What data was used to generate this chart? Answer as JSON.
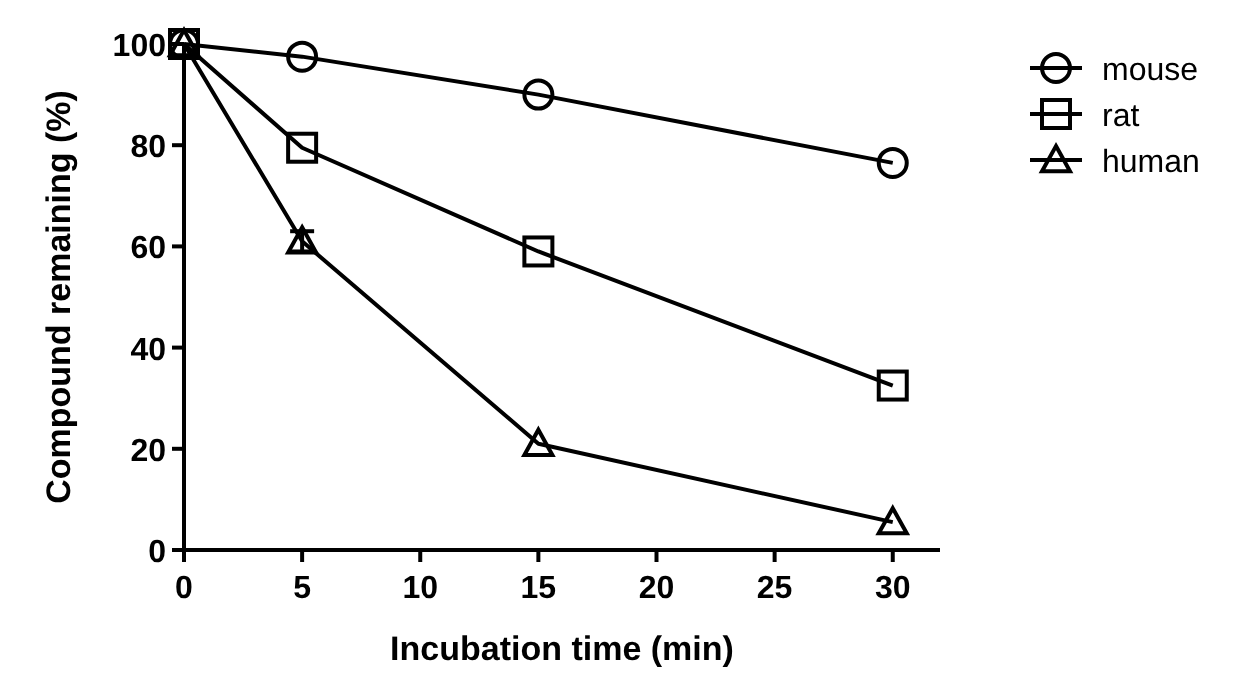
{
  "chart_data": {
    "type": "line",
    "xlabel": "Incubation time (min)",
    "ylabel": "Compound remaining (%)",
    "x": [
      0,
      5,
      15,
      30
    ],
    "xlim": [
      0,
      32
    ],
    "xticks": [
      0,
      5,
      10,
      15,
      20,
      25,
      30
    ],
    "ylim": [
      0,
      100
    ],
    "yticks": [
      0,
      20,
      40,
      60,
      80,
      100
    ],
    "legend": "right",
    "grid": false,
    "line_style": "solid",
    "series": [
      {
        "name": "mouse",
        "color": "#000000",
        "marker": "circle",
        "values": [
          100,
          97.5,
          90,
          76.5
        ]
      },
      {
        "name": "rat",
        "color": "#000000",
        "marker": "square",
        "values": [
          100,
          79.5,
          59,
          32.5
        ]
      },
      {
        "name": "human",
        "color": "#000000",
        "marker": "triangle",
        "values": [
          100,
          61,
          21,
          5.5
        ],
        "errors": [
          null,
          2,
          null,
          null
        ]
      }
    ]
  }
}
